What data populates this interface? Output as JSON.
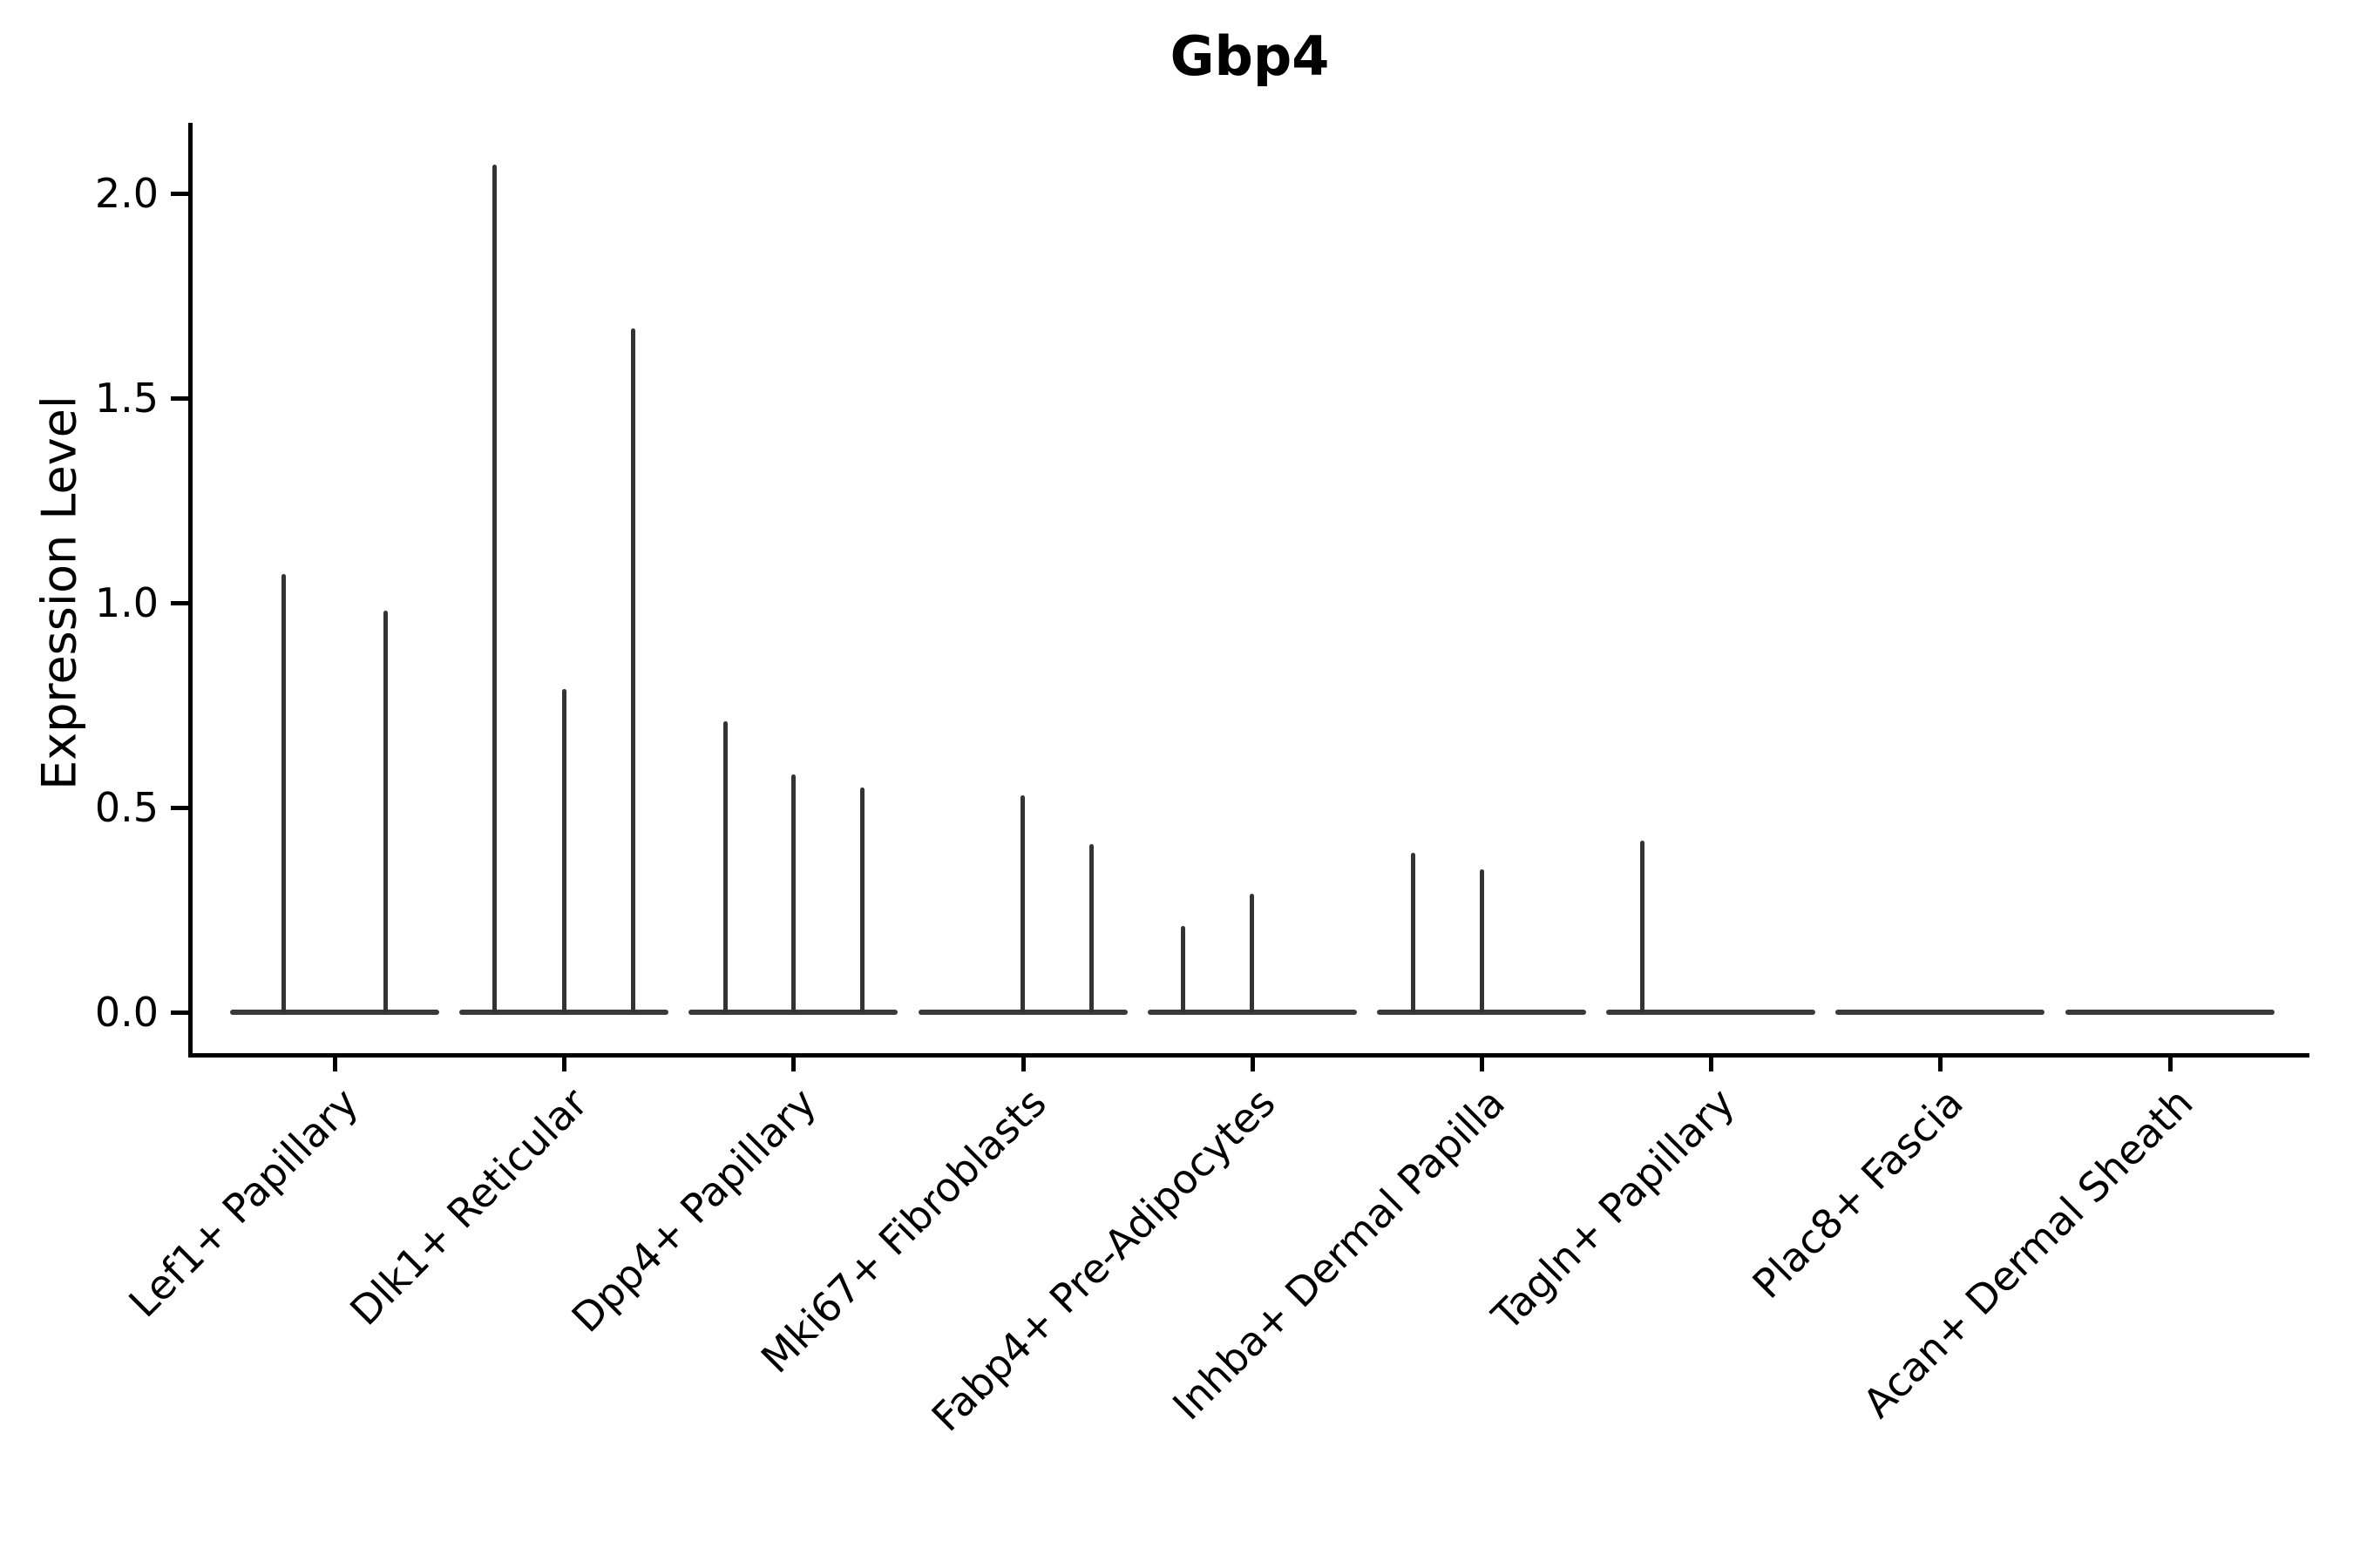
{
  "title": "Gbp4",
  "y_axis": {
    "label": "Expression Level",
    "tick_labels": [
      "0.0",
      "0.5",
      "1.0",
      "1.5",
      "2.0"
    ],
    "tick_values": [
      0.0,
      0.5,
      1.0,
      1.5,
      2.0
    ]
  },
  "x_axis": {
    "tick_labels": [
      "Lef1+ Papillary",
      "Dlk1+ Reticular",
      "Dpp4+ Papillary",
      "Mki67+ Fibroblasts",
      "Fabp4+ Pre-Adipocytes",
      "Inhba+ Dermal Papilla",
      "Tagln+ Papillary",
      "Plac8+ Fascia",
      "Acan+ Dermal Sheath"
    ],
    "rotation_deg": 45
  },
  "chart_data": {
    "type": "violin",
    "title": "Gbp4",
    "xlabel": "",
    "ylabel": "Expression Level",
    "ylim": [
      -0.1,
      2.17
    ],
    "grid": false,
    "legend": "none",
    "categories": [
      "Lef1+ Papillary",
      "Dlk1+ Reticular",
      "Dpp4+ Papillary",
      "Mki67+ Fibroblasts",
      "Fabp4+ Pre-Adipocytes",
      "Inhba+ Dermal Papilla",
      "Tagln+ Papillary",
      "Plac8+ Fascia",
      "Acan+ Dermal Sheath"
    ],
    "series": [
      {
        "category": "Lef1+ Papillary",
        "violins": [
          {
            "x_offset_frac": -0.224,
            "max": 1.07
          },
          {
            "x_offset_frac": 0.224,
            "max": 0.98
          }
        ]
      },
      {
        "category": "Dlk1+ Reticular",
        "violins": [
          {
            "x_offset_frac": -0.302,
            "max": 2.07
          },
          {
            "x_offset_frac": 0.0,
            "max": 0.79
          },
          {
            "x_offset_frac": 0.302,
            "max": 1.67
          }
        ]
      },
      {
        "category": "Dpp4+ Papillary",
        "violins": [
          {
            "x_offset_frac": -0.297,
            "max": 0.71
          },
          {
            "x_offset_frac": 0.0,
            "max": 0.58
          },
          {
            "x_offset_frac": 0.3,
            "max": 0.55
          }
        ]
      },
      {
        "category": "Mki67+ Fibroblasts",
        "violins": [
          {
            "x_offset_frac": 0.0,
            "max": 0.53
          },
          {
            "x_offset_frac": 0.3,
            "max": 0.41
          }
        ]
      },
      {
        "category": "Fabp4+ Pre-Adipocytes",
        "violins": [
          {
            "x_offset_frac": -0.3,
            "max": 0.21
          },
          {
            "x_offset_frac": 0.0,
            "max": 0.29
          }
        ]
      },
      {
        "category": "Inhba+ Dermal Papilla",
        "violins": [
          {
            "x_offset_frac": -0.297,
            "max": 0.39
          },
          {
            "x_offset_frac": 0.0,
            "max": 0.35
          }
        ]
      },
      {
        "category": "Tagln+ Papillary",
        "violins": [
          {
            "x_offset_frac": -0.3,
            "max": 0.42
          }
        ]
      },
      {
        "category": "Plac8+ Fascia",
        "violins": []
      },
      {
        "category": "Acan+ Dermal Sheath",
        "violins": []
      }
    ],
    "baseline_value": 0.0,
    "colors": {
      "violin": "#333333",
      "baseline": "#3a3a3a",
      "axis": "#000000",
      "text": "#000000",
      "background": "#ffffff"
    }
  }
}
